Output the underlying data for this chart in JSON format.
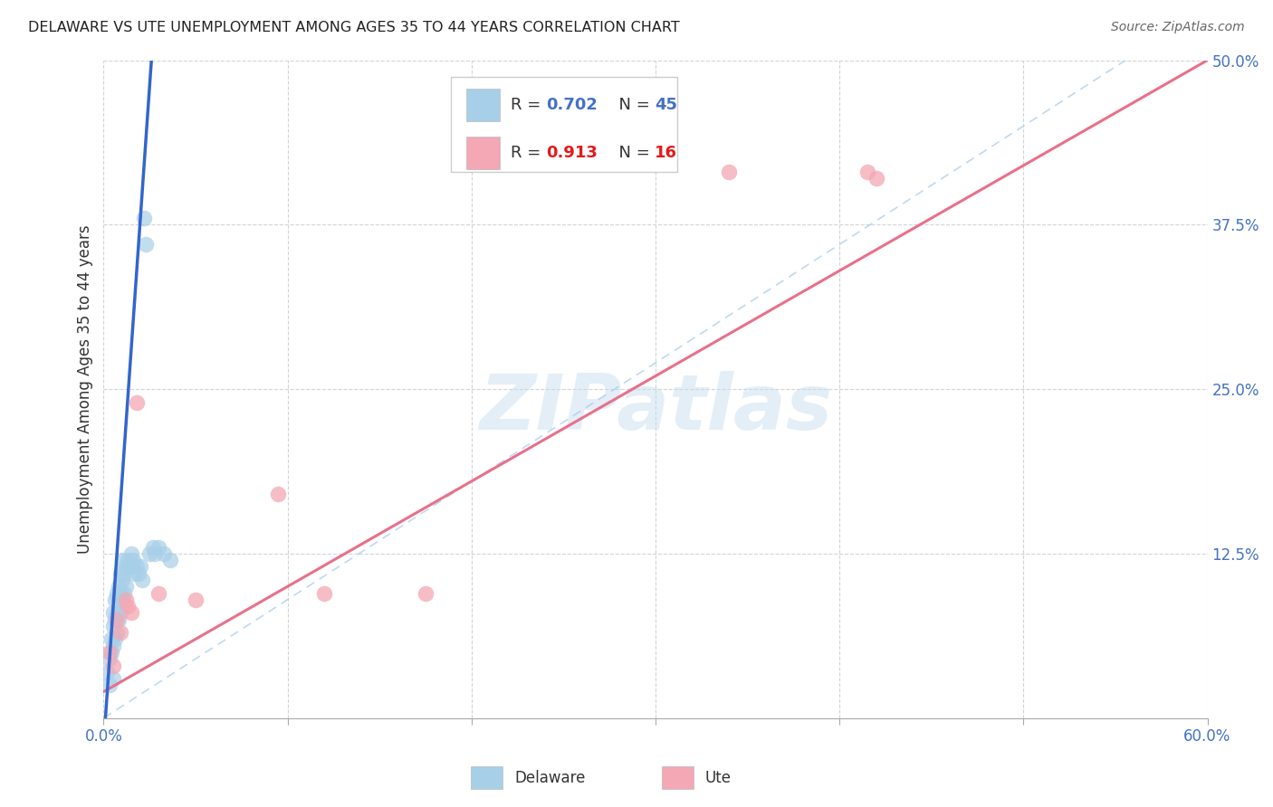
{
  "title": "DELAWARE VS UTE UNEMPLOYMENT AMONG AGES 35 TO 44 YEARS CORRELATION CHART",
  "source": "Source: ZipAtlas.com",
  "ylabel": "Unemployment Among Ages 35 to 44 years",
  "xlim": [
    0.0,
    0.6
  ],
  "ylim": [
    0.0,
    0.5
  ],
  "blue_color": "#a8cfe8",
  "pink_color": "#f4a7b4",
  "blue_line_color": "#3366cc",
  "pink_line_color": "#e8718a",
  "blue_r": "0.702",
  "blue_n": "45",
  "pink_r": "0.913",
  "pink_n": "16",
  "watermark": "ZIPatlas",
  "delaware_x": [
    0.002,
    0.003,
    0.003,
    0.004,
    0.004,
    0.005,
    0.005,
    0.005,
    0.005,
    0.006,
    0.006,
    0.006,
    0.007,
    0.007,
    0.007,
    0.008,
    0.008,
    0.008,
    0.009,
    0.009,
    0.009,
    0.01,
    0.01,
    0.01,
    0.011,
    0.011,
    0.012,
    0.012,
    0.013,
    0.014,
    0.015,
    0.016,
    0.017,
    0.018,
    0.019,
    0.02,
    0.021,
    0.022,
    0.023,
    0.025,
    0.027,
    0.028,
    0.03,
    0.033,
    0.036
  ],
  "delaware_y": [
    0.035,
    0.045,
    0.025,
    0.06,
    0.05,
    0.08,
    0.07,
    0.055,
    0.03,
    0.09,
    0.075,
    0.06,
    0.095,
    0.08,
    0.065,
    0.1,
    0.09,
    0.075,
    0.11,
    0.095,
    0.08,
    0.12,
    0.105,
    0.09,
    0.11,
    0.095,
    0.115,
    0.1,
    0.12,
    0.115,
    0.125,
    0.12,
    0.11,
    0.115,
    0.11,
    0.115,
    0.105,
    0.38,
    0.36,
    0.125,
    0.13,
    0.125,
    0.13,
    0.125,
    0.12
  ],
  "ute_x": [
    0.003,
    0.005,
    0.007,
    0.009,
    0.012,
    0.013,
    0.015,
    0.018,
    0.03,
    0.05,
    0.095,
    0.12,
    0.175,
    0.34,
    0.415,
    0.42
  ],
  "ute_y": [
    0.05,
    0.04,
    0.075,
    0.065,
    0.09,
    0.085,
    0.08,
    0.24,
    0.095,
    0.09,
    0.17,
    0.095,
    0.095,
    0.415,
    0.415,
    0.41
  ],
  "dashed_line_x": [
    0.1,
    0.55
  ],
  "dashed_line_y": [
    0.08,
    0.5
  ]
}
